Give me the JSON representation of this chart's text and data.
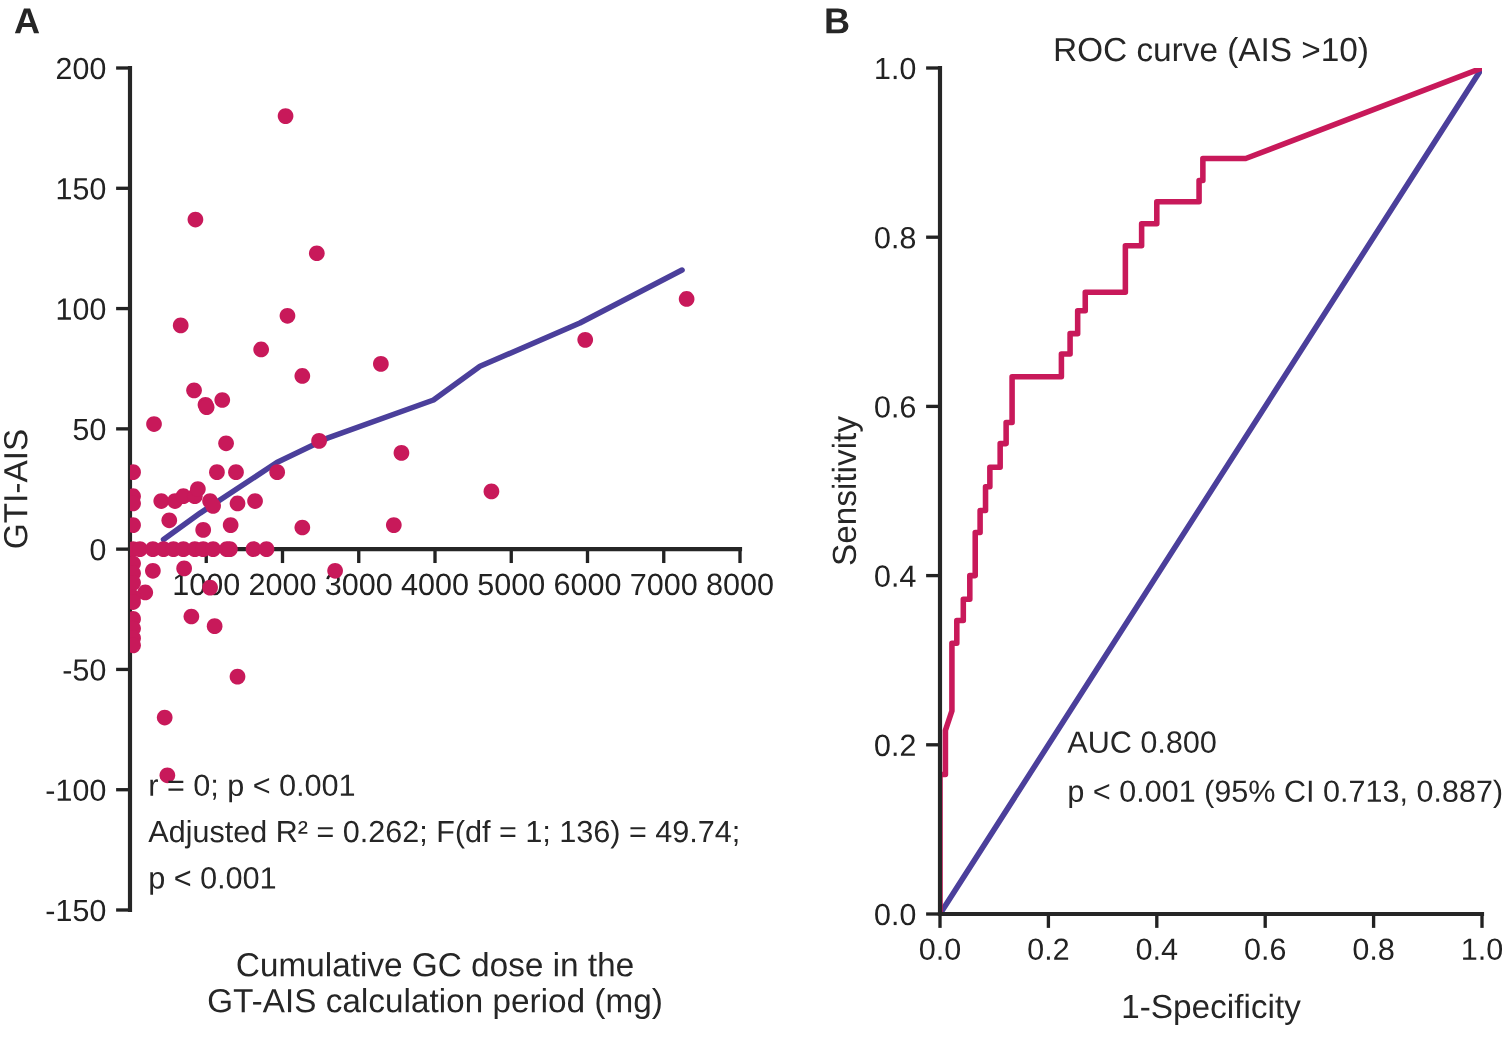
{
  "chart_data": [
    {
      "type": "scatter",
      "xlabel": "Cumulative GC dose in the\nGT-AIS calculation period (mg)",
      "ylabel": "GTI-AIS",
      "xlim": [
        0,
        8000
      ],
      "xticks": [
        1000,
        2000,
        3000,
        4000,
        5000,
        6000,
        7000,
        8000
      ],
      "ylim": [
        -150,
        200
      ],
      "yticks": [
        -150,
        -100,
        -50,
        0,
        50,
        100,
        150,
        200
      ],
      "annotations": [
        "A",
        "r = 0; p < 0.001",
        "Adjusted R² = 0.262; F(df = 1; 136) = 49.74;",
        "p < 0.001"
      ],
      "series": [
        {
          "type": "scatter",
          "color": "#c8195a",
          "marker": "circle",
          "x": [
            2040,
            858,
            2450,
            7300,
            2065,
            665,
            5970,
            1720,
            3290,
            2260,
            840,
            990,
            1005,
            1210,
            315,
            1260,
            2480,
            3560,
            40,
            1140,
            1390,
            1930,
            4740,
            40,
            40,
            410,
            590,
            700,
            850,
            890,
            1050,
            1090,
            1410,
            1640,
            515,
            40,
            1320,
            2260,
            3460,
            960,
            40,
            130,
            300,
            440,
            570,
            700,
            850,
            960,
            1090,
            1270,
            1310,
            1620,
            1790,
            300,
            710,
            2690,
            1050,
            40,
            40,
            40,
            200,
            40,
            40,
            40,
            40,
            40,
            40,
            805,
            1110,
            1410,
            455,
            490
          ],
          "values": [
            180,
            137,
            123,
            104,
            97,
            93,
            87,
            83,
            77,
            72,
            66,
            60,
            59,
            62,
            52,
            44,
            45,
            40,
            32,
            32,
            32,
            32,
            24,
            22,
            19,
            20,
            20,
            22,
            22,
            25,
            20,
            18,
            19,
            20,
            12,
            10,
            10,
            9,
            10,
            8,
            0,
            0,
            0,
            0,
            0,
            0,
            0,
            0,
            0,
            0,
            0,
            0,
            0,
            -9,
            -8,
            -9,
            -16,
            -6,
            -10,
            -14,
            -18,
            -20,
            -22,
            -29,
            -33,
            -37,
            -40,
            -28,
            -32,
            -53,
            -70,
            -94
          ]
        },
        {
          "type": "line",
          "color": "#4b3f9b",
          "x": [
            440,
            920,
            1925,
            2580,
            3980,
            4590,
            5900,
            7240
          ],
          "values": [
            4,
            15,
            36,
            46,
            62,
            76,
            94,
            116
          ]
        }
      ]
    },
    {
      "type": "line",
      "title": "ROC curve (AIS >10)",
      "xlabel": "1-Specificity",
      "ylabel": "Sensitivity",
      "xlim": [
        0,
        1
      ],
      "xticks": [
        {
          "value": 0,
          "label": "0.0"
        },
        {
          "value": 0.2,
          "label": "0.2"
        },
        {
          "value": 0.4,
          "label": "0.4"
        },
        {
          "value": 0.6,
          "label": "0.6"
        },
        {
          "value": 0.8,
          "label": "0.8"
        },
        {
          "value": 1,
          "label": "1.0"
        }
      ],
      "ylim": [
        0,
        1
      ],
      "yticks": [
        {
          "value": 0,
          "label": "0.0"
        },
        {
          "value": 0.2,
          "label": "0.2"
        },
        {
          "value": 0.4,
          "label": "0.4"
        },
        {
          "value": 0.6,
          "label": "0.6"
        },
        {
          "value": 0.8,
          "label": "0.8"
        },
        {
          "value": 1,
          "label": "1.0"
        }
      ],
      "annotations": [
        "B",
        "AUC 0.800",
        "p < 0.001 (95% CI 0.713, 0.887)"
      ],
      "series": [
        {
          "type": "line",
          "color": "#4b3f9b",
          "x": [
            0,
            1
          ],
          "values": [
            0,
            1
          ]
        },
        {
          "type": "line",
          "color": "#c8195a",
          "x": [
            0,
            0,
            0.01,
            0.01,
            0.022,
            0.022,
            0.031,
            0.031,
            0.043,
            0.043,
            0.055,
            0.055,
            0.065,
            0.065,
            0.074,
            0.074,
            0.084,
            0.084,
            0.092,
            0.092,
            0.111,
            0.111,
            0.122,
            0.122,
            0.133,
            0.133,
            0.224,
            0.224,
            0.24,
            0.24,
            0.254,
            0.254,
            0.268,
            0.268,
            0.342,
            0.342,
            0.372,
            0.372,
            0.4,
            0.4,
            0.478,
            0.478,
            0.485,
            0.485,
            0.564,
            1
          ],
          "values": [
            0,
            0.165,
            0.165,
            0.217,
            0.24,
            0.32,
            0.32,
            0.347,
            0.347,
            0.372,
            0.372,
            0.4,
            0.4,
            0.451,
            0.451,
            0.477,
            0.477,
            0.505,
            0.505,
            0.528,
            0.528,
            0.556,
            0.556,
            0.581,
            0.581,
            0.635,
            0.635,
            0.662,
            0.662,
            0.686,
            0.686,
            0.713,
            0.713,
            0.735,
            0.735,
            0.79,
            0.79,
            0.816,
            0.816,
            0.842,
            0.842,
            0.867,
            0.867,
            0.893,
            0.893,
            1
          ]
        }
      ]
    }
  ]
}
